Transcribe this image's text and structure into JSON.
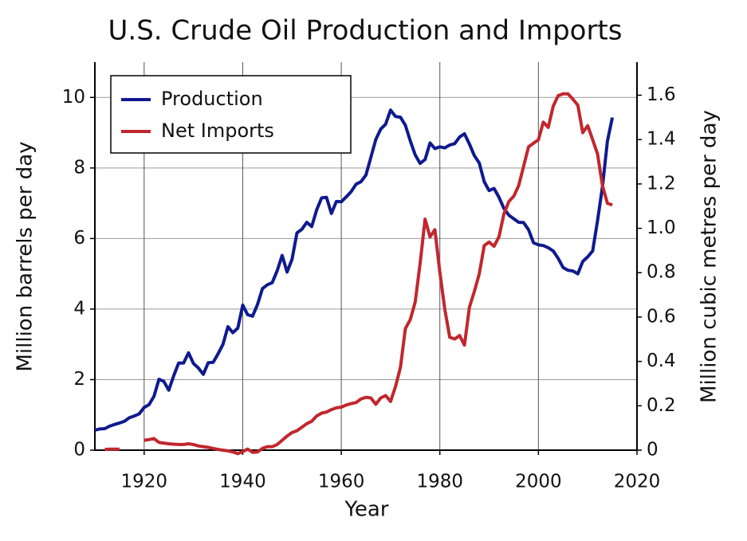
{
  "chart_data": {
    "type": "line",
    "title": "U.S. Crude Oil Production and Imports",
    "x_label": "Year",
    "y_label": "Million barrels per day",
    "y2_label": "Million cubic metres per day",
    "x": [
      1910,
      1911,
      1912,
      1913,
      1914,
      1915,
      1916,
      1917,
      1918,
      1919,
      1920,
      1921,
      1922,
      1923,
      1924,
      1925,
      1926,
      1927,
      1928,
      1929,
      1930,
      1931,
      1932,
      1933,
      1934,
      1935,
      1936,
      1937,
      1938,
      1939,
      1940,
      1941,
      1942,
      1943,
      1944,
      1945,
      1946,
      1947,
      1948,
      1949,
      1950,
      1951,
      1952,
      1953,
      1954,
      1955,
      1956,
      1957,
      1958,
      1959,
      1960,
      1961,
      1962,
      1963,
      1964,
      1965,
      1966,
      1967,
      1968,
      1969,
      1970,
      1971,
      1972,
      1973,
      1974,
      1975,
      1976,
      1977,
      1978,
      1979,
      1980,
      1981,
      1982,
      1983,
      1984,
      1985,
      1986,
      1987,
      1988,
      1989,
      1990,
      1991,
      1992,
      1993,
      1994,
      1995,
      1996,
      1997,
      1998,
      1999,
      2000,
      2001,
      2002,
      2003,
      2004,
      2005,
      2006,
      2007,
      2008,
      2009,
      2010,
      2011,
      2012,
      2013,
      2014,
      2015
    ],
    "series": [
      {
        "name": "Production",
        "color": "#0f1a8e",
        "values": [
          0.57,
          0.6,
          0.61,
          0.68,
          0.73,
          0.77,
          0.82,
          0.92,
          0.97,
          1.03,
          1.21,
          1.29,
          1.53,
          2.01,
          1.95,
          1.7,
          2.11,
          2.47,
          2.47,
          2.76,
          2.46,
          2.33,
          2.15,
          2.48,
          2.49,
          2.73,
          3.0,
          3.5,
          3.33,
          3.46,
          4.11,
          3.84,
          3.8,
          4.13,
          4.58,
          4.69,
          4.75,
          5.09,
          5.52,
          5.05,
          5.41,
          6.16,
          6.26,
          6.46,
          6.34,
          6.81,
          7.15,
          7.17,
          6.71,
          7.05,
          7.04,
          7.18,
          7.33,
          7.54,
          7.61,
          7.8,
          8.3,
          8.81,
          9.1,
          9.24,
          9.64,
          9.46,
          9.44,
          9.21,
          8.77,
          8.37,
          8.13,
          8.24,
          8.71,
          8.55,
          8.6,
          8.57,
          8.65,
          8.69,
          8.88,
          8.97,
          8.68,
          8.35,
          8.14,
          7.61,
          7.36,
          7.42,
          7.17,
          6.85,
          6.66,
          6.56,
          6.46,
          6.45,
          6.25,
          5.88,
          5.82,
          5.8,
          5.74,
          5.65,
          5.44,
          5.18,
          5.1,
          5.08,
          5.0,
          5.35,
          5.48,
          5.65,
          6.5,
          7.47,
          8.76,
          9.43
        ]
      },
      {
        "name": "Net Imports",
        "color": "#c1272d",
        "values": [
          null,
          null,
          0.02,
          0.03,
          0.03,
          0.03,
          null,
          null,
          null,
          null,
          0.28,
          0.3,
          0.33,
          0.22,
          0.2,
          0.18,
          0.17,
          0.16,
          0.16,
          0.18,
          0.16,
          0.12,
          0.1,
          0.08,
          0.05,
          0.02,
          0.0,
          -0.02,
          -0.05,
          -0.1,
          -0.04,
          0.03,
          -0.06,
          -0.05,
          0.05,
          0.1,
          0.1,
          0.16,
          0.28,
          0.4,
          0.5,
          0.55,
          0.65,
          0.75,
          0.82,
          0.97,
          1.05,
          1.08,
          1.15,
          1.2,
          1.22,
          1.28,
          1.32,
          1.35,
          1.45,
          1.5,
          1.48,
          1.3,
          1.48,
          1.55,
          1.38,
          1.8,
          2.35,
          3.45,
          3.7,
          4.2,
          5.3,
          6.55,
          6.05,
          6.25,
          5.05,
          4.0,
          3.2,
          3.15,
          3.25,
          2.98,
          4.05,
          4.5,
          5.0,
          5.8,
          5.9,
          5.78,
          6.05,
          6.7,
          7.05,
          7.2,
          7.5,
          8.05,
          8.6,
          8.7,
          8.8,
          9.3,
          9.15,
          9.75,
          10.05,
          10.1,
          10.1,
          9.95,
          9.78,
          9.0,
          9.2,
          8.8,
          8.4,
          7.5,
          7.0,
          6.95
        ]
      }
    ],
    "xlim": [
      1910,
      2020
    ],
    "xticks": [
      1920,
      1940,
      1960,
      1980,
      2000,
      2020
    ],
    "ylim": [
      0,
      11
    ],
    "yticks": [
      0,
      2,
      4,
      6,
      8,
      10
    ],
    "y2lim": [
      0,
      1.749
    ],
    "y2ticks": [
      0,
      0.2,
      0.4,
      0.6,
      0.8,
      {
        "value": 1,
        "label": "1.0"
      },
      1.2,
      1.4,
      1.6
    ],
    "grid": true,
    "legend": "upper-left"
  }
}
